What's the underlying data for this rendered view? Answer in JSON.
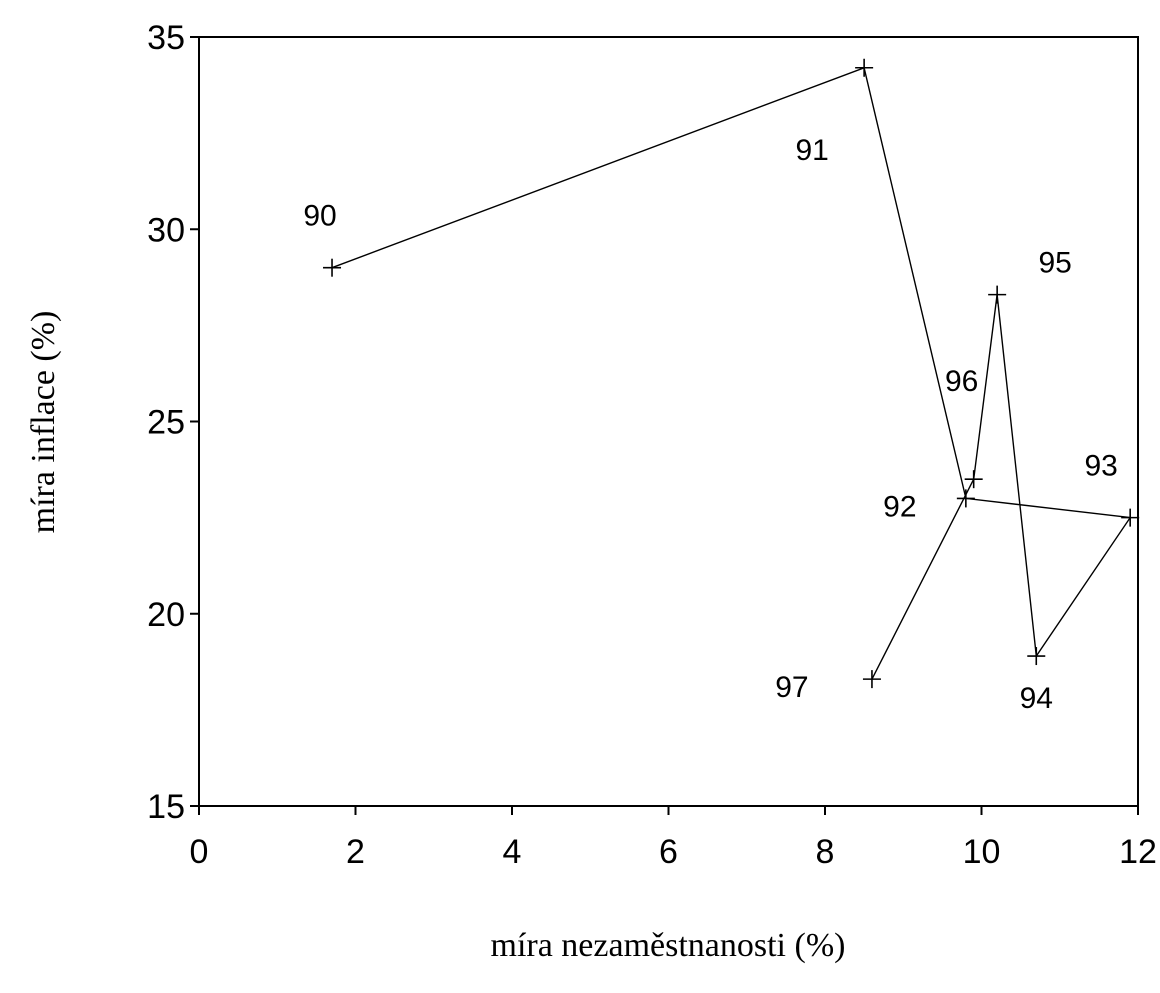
{
  "chart_data": {
    "type": "line",
    "xlabel": "míra nezaměstnanosti (%)",
    "ylabel": "míra inflace (%)",
    "xlim": [
      0,
      12
    ],
    "ylim": [
      15,
      35
    ],
    "x_ticks": [
      0,
      2,
      4,
      6,
      8,
      10,
      12
    ],
    "y_ticks": [
      15,
      20,
      25,
      30,
      35
    ],
    "x_tick_labels": [
      "0",
      "2",
      "4",
      "6",
      "8",
      "10",
      "12"
    ],
    "y_tick_labels": [
      "15",
      "20",
      "25",
      "30",
      "35"
    ],
    "grid": false,
    "marker": "+",
    "points": [
      {
        "label": "90",
        "x": 1.7,
        "y": 29.0
      },
      {
        "label": "91",
        "x": 8.5,
        "y": 34.2
      },
      {
        "label": "92",
        "x": 9.8,
        "y": 23.0
      },
      {
        "label": "93",
        "x": 11.9,
        "y": 22.5
      },
      {
        "label": "94",
        "x": 10.7,
        "y": 18.9
      },
      {
        "label": "95",
        "x": 10.2,
        "y": 28.3
      },
      {
        "label": "96",
        "x": 9.9,
        "y": 23.5
      },
      {
        "label": "97",
        "x": 8.6,
        "y": 18.3
      }
    ]
  }
}
